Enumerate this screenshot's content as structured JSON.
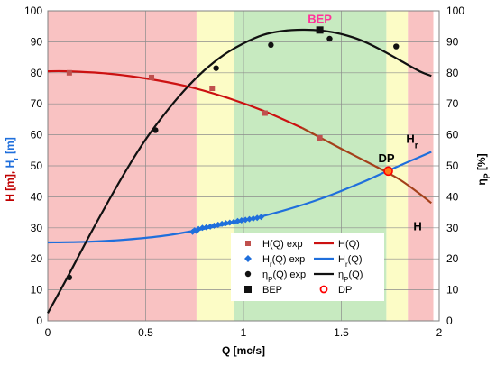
{
  "chart_data": {
    "type": "line",
    "xlabel": "Q [mc/s]",
    "ylabel_left": "H [m], H_r [m]",
    "ylabel_right": "η_P [%]",
    "xlim": [
      0,
      2
    ],
    "ylim": [
      0,
      100
    ],
    "ylim_right": [
      0,
      100
    ],
    "x_ticks": [
      "0",
      "0.5",
      "1",
      "1.5",
      "2"
    ],
    "y_ticks": [
      "0",
      "10",
      "20",
      "30",
      "40",
      "50",
      "60",
      "70",
      "80",
      "90",
      "100"
    ],
    "y_ticks_right": [
      "0",
      "10",
      "20",
      "30",
      "40",
      "50",
      "60",
      "70",
      "80",
      "90",
      "100"
    ],
    "grid": true,
    "zones": [
      {
        "x0": 0.0,
        "x1": 0.76,
        "color": "#f9c2c2"
      },
      {
        "x0": 0.76,
        "x1": 0.95,
        "color": "#fcfcc6"
      },
      {
        "x0": 0.95,
        "x1": 1.73,
        "color": "#c7eac0"
      },
      {
        "x0": 1.73,
        "x1": 1.84,
        "color": "#fcfcc6"
      },
      {
        "x0": 1.84,
        "x1": 1.97,
        "color": "#f9c2c2"
      }
    ],
    "series": [
      {
        "name": "H(Q)",
        "kind": "line",
        "axis": "left",
        "color": "#c0110f",
        "x": [
          0,
          0.1,
          0.3,
          0.5,
          0.7,
          0.9,
          1.1,
          1.3,
          1.5,
          1.7,
          1.8,
          1.9,
          1.96
        ],
        "y": [
          80.5,
          80.5,
          79.8,
          78.2,
          75.8,
          72.3,
          67.8,
          62.2,
          55.5,
          49.0,
          45.5,
          41.0,
          38.0
        ]
      },
      {
        "name": "H(Q) exp",
        "kind": "marker-square",
        "axis": "left",
        "color": "#c0504d",
        "x": [
          0.11,
          0.53,
          0.84,
          1.11,
          1.39,
          1.74
        ],
        "y": [
          80,
          78.5,
          75,
          67,
          59,
          48
        ]
      },
      {
        "name": "H_r(Q)",
        "kind": "line",
        "axis": "left",
        "color": "#1f6fdc",
        "x": [
          0,
          0.2,
          0.4,
          0.6,
          0.8,
          1.0,
          1.2,
          1.4,
          1.6,
          1.73,
          1.85,
          1.96
        ],
        "y": [
          25.3,
          25.5,
          26.2,
          27.5,
          29.7,
          32.3,
          35.5,
          39.5,
          44.5,
          48.2,
          51.5,
          54.5
        ]
      },
      {
        "name": "H_r(Q) exp",
        "kind": "marker-diamond",
        "axis": "left",
        "color": "#1f6fdc",
        "x": [
          0.74,
          0.75,
          0.76,
          0.77,
          0.79,
          0.81,
          0.83,
          0.85,
          0.87,
          0.89,
          0.91,
          0.93,
          0.95,
          0.97,
          0.99,
          1.01,
          1.03,
          1.05,
          1.07,
          1.09
        ],
        "y": [
          28.7,
          29.2,
          29.0,
          29.6,
          30.0,
          30.2,
          30.4,
          30.7,
          31.0,
          31.3,
          31.5,
          31.7,
          31.9,
          32.2,
          32.4,
          32.6,
          32.8,
          33.0,
          33.2,
          33.5
        ]
      },
      {
        "name": "η_P(Q)",
        "kind": "line",
        "axis": "right",
        "color": "#111111",
        "x": [
          0,
          0.1,
          0.2,
          0.3,
          0.4,
          0.5,
          0.6,
          0.7,
          0.8,
          0.9,
          1.0,
          1.1,
          1.2,
          1.3,
          1.4,
          1.5,
          1.6,
          1.7,
          1.8,
          1.9,
          1.96
        ],
        "y": [
          2.5,
          14.0,
          26.0,
          37.5,
          48.5,
          58.5,
          67.0,
          74.5,
          80.8,
          85.8,
          89.5,
          92.2,
          93.5,
          93.9,
          93.6,
          92.5,
          90.5,
          87.5,
          84.0,
          80.5,
          79.0
        ]
      },
      {
        "name": "η_P(Q) exp",
        "kind": "marker-circle",
        "axis": "right",
        "color": "#111111",
        "x": [
          0.11,
          0.55,
          0.86,
          1.14,
          1.44,
          1.78
        ],
        "y": [
          14,
          61.5,
          81.5,
          89,
          91,
          88.5
        ]
      },
      {
        "name": "BEP",
        "kind": "marker-bigsquare",
        "axis": "right",
        "color": "#111111",
        "x": [
          1.39
        ],
        "y": [
          93.8
        ]
      },
      {
        "name": "DP",
        "kind": "marker-ring",
        "axis": "left",
        "color": "#ff0000",
        "x": [
          1.74
        ],
        "y": [
          48.3
        ]
      }
    ],
    "annotations": [
      {
        "text": "BEP",
        "color": "#ff3399"
      },
      {
        "text": "DP",
        "color": "#000000"
      },
      {
        "text": "H_r",
        "color": "#000000"
      },
      {
        "text": "H",
        "color": "#000000"
      }
    ]
  }
}
